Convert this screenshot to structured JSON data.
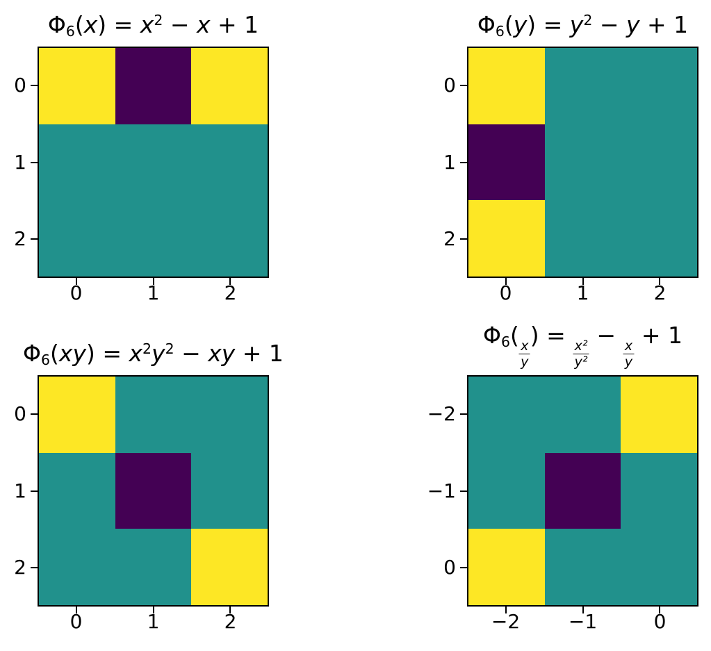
{
  "figure": {
    "background": "#ffffff"
  },
  "colors": {
    "level0": "#440154",
    "level1": "#21918c",
    "level2": "#fde725",
    "axis": "#000000",
    "text": "#000000"
  },
  "panels": [
    {
      "name": "phi6-of-x",
      "title_text": "Φ₆(x) = x² − x + 1",
      "title_segments": [
        {
          "text": "Φ"
        },
        {
          "text": "6",
          "style": "sub"
        },
        {
          "text": "("
        },
        {
          "text": "x",
          "style": "italic"
        },
        {
          "text": ") = "
        },
        {
          "text": "x",
          "style": "italic"
        },
        {
          "text": "2",
          "style": "sup"
        },
        {
          "text": " − "
        },
        {
          "text": "x",
          "style": "italic"
        },
        {
          "text": " + 1"
        }
      ],
      "xticks": [
        "0",
        "1",
        "2"
      ],
      "yticks": [
        "0",
        "1",
        "2"
      ],
      "grid": [
        [
          2,
          0,
          2
        ],
        [
          1,
          1,
          1
        ],
        [
          1,
          1,
          1
        ]
      ]
    },
    {
      "name": "phi6-of-y",
      "title_text": "Φ₆(y) = y² − y + 1",
      "title_segments": [
        {
          "text": "Φ"
        },
        {
          "text": "6",
          "style": "sub"
        },
        {
          "text": "("
        },
        {
          "text": "y",
          "style": "italic"
        },
        {
          "text": ") = "
        },
        {
          "text": "y",
          "style": "italic"
        },
        {
          "text": "2",
          "style": "sup"
        },
        {
          "text": " − "
        },
        {
          "text": "y",
          "style": "italic"
        },
        {
          "text": " + 1"
        }
      ],
      "xticks": [
        "0",
        "1",
        "2"
      ],
      "yticks": [
        "0",
        "1",
        "2"
      ],
      "grid": [
        [
          2,
          1,
          1
        ],
        [
          0,
          1,
          1
        ],
        [
          2,
          1,
          1
        ]
      ]
    },
    {
      "name": "phi6-of-xy",
      "title_text": "Φ₆(xy) = x²y² − xy + 1",
      "title_segments": [
        {
          "text": "Φ"
        },
        {
          "text": "6",
          "style": "sub"
        },
        {
          "text": "("
        },
        {
          "text": "xy",
          "style": "italic"
        },
        {
          "text": ") = "
        },
        {
          "text": "x",
          "style": "italic"
        },
        {
          "text": "2",
          "style": "sup"
        },
        {
          "text": "y",
          "style": "italic"
        },
        {
          "text": "2",
          "style": "sup"
        },
        {
          "text": " − "
        },
        {
          "text": "xy",
          "style": "italic"
        },
        {
          "text": " + 1"
        }
      ],
      "xticks": [
        "0",
        "1",
        "2"
      ],
      "yticks": [
        "0",
        "1",
        "2"
      ],
      "grid": [
        [
          2,
          1,
          1
        ],
        [
          1,
          0,
          1
        ],
        [
          1,
          1,
          2
        ]
      ]
    },
    {
      "name": "phi6-of-x-over-y",
      "title_text": "Φ₆(x/y) = x²/y² − x/y + 1",
      "title_segments": [
        {
          "text": "Φ"
        },
        {
          "text": "6",
          "style": "sub"
        },
        {
          "text": "("
        },
        {
          "style": "frac",
          "num": "x",
          "den": "y"
        },
        {
          "text": ") = "
        },
        {
          "style": "frac",
          "num": "x²",
          "den": "y²"
        },
        {
          "text": " − "
        },
        {
          "style": "frac",
          "num": "x",
          "den": "y"
        },
        {
          "text": " + 1"
        }
      ],
      "xticks": [
        "−2",
        "−1",
        "0"
      ],
      "yticks": [
        "−2",
        "−1",
        "0"
      ],
      "grid": [
        [
          1,
          1,
          2
        ],
        [
          1,
          0,
          1
        ],
        [
          2,
          1,
          1
        ]
      ]
    }
  ],
  "chart_data": [
    {
      "type": "heatmap",
      "title": "Φ₆(x) = x² − x + 1",
      "x_ticklabels": [
        "0",
        "1",
        "2"
      ],
      "y_ticklabels": [
        "0",
        "1",
        "2"
      ],
      "values": [
        [
          2,
          0,
          2
        ],
        [
          1,
          1,
          1
        ],
        [
          1,
          1,
          1
        ]
      ],
      "colormap": "viridis",
      "value_colors": {
        "0": "#440154",
        "1": "#21918c",
        "2": "#fde725"
      },
      "grid": "off",
      "legend": "none"
    },
    {
      "type": "heatmap",
      "title": "Φ₆(y) = y² − y + 1",
      "x_ticklabels": [
        "0",
        "1",
        "2"
      ],
      "y_ticklabels": [
        "0",
        "1",
        "2"
      ],
      "values": [
        [
          2,
          1,
          1
        ],
        [
          0,
          1,
          1
        ],
        [
          2,
          1,
          1
        ]
      ],
      "colormap": "viridis",
      "value_colors": {
        "0": "#440154",
        "1": "#21918c",
        "2": "#fde725"
      },
      "grid": "off",
      "legend": "none"
    },
    {
      "type": "heatmap",
      "title": "Φ₆(xy) = x²y² − xy + 1",
      "x_ticklabels": [
        "0",
        "1",
        "2"
      ],
      "y_ticklabels": [
        "0",
        "1",
        "2"
      ],
      "values": [
        [
          2,
          1,
          1
        ],
        [
          1,
          0,
          1
        ],
        [
          1,
          1,
          2
        ]
      ],
      "colormap": "viridis",
      "value_colors": {
        "0": "#440154",
        "1": "#21918c",
        "2": "#fde725"
      },
      "grid": "off",
      "legend": "none"
    },
    {
      "type": "heatmap",
      "title": "Φ₆(x/y) = x²/y² − x/y + 1",
      "x_ticklabels": [
        "−2",
        "−1",
        "0"
      ],
      "y_ticklabels": [
        "−2",
        "−1",
        "0"
      ],
      "values": [
        [
          1,
          1,
          2
        ],
        [
          1,
          0,
          1
        ],
        [
          2,
          1,
          1
        ]
      ],
      "colormap": "viridis",
      "value_colors": {
        "0": "#440154",
        "1": "#21918c",
        "2": "#fde725"
      },
      "grid": "off",
      "legend": "none"
    }
  ]
}
